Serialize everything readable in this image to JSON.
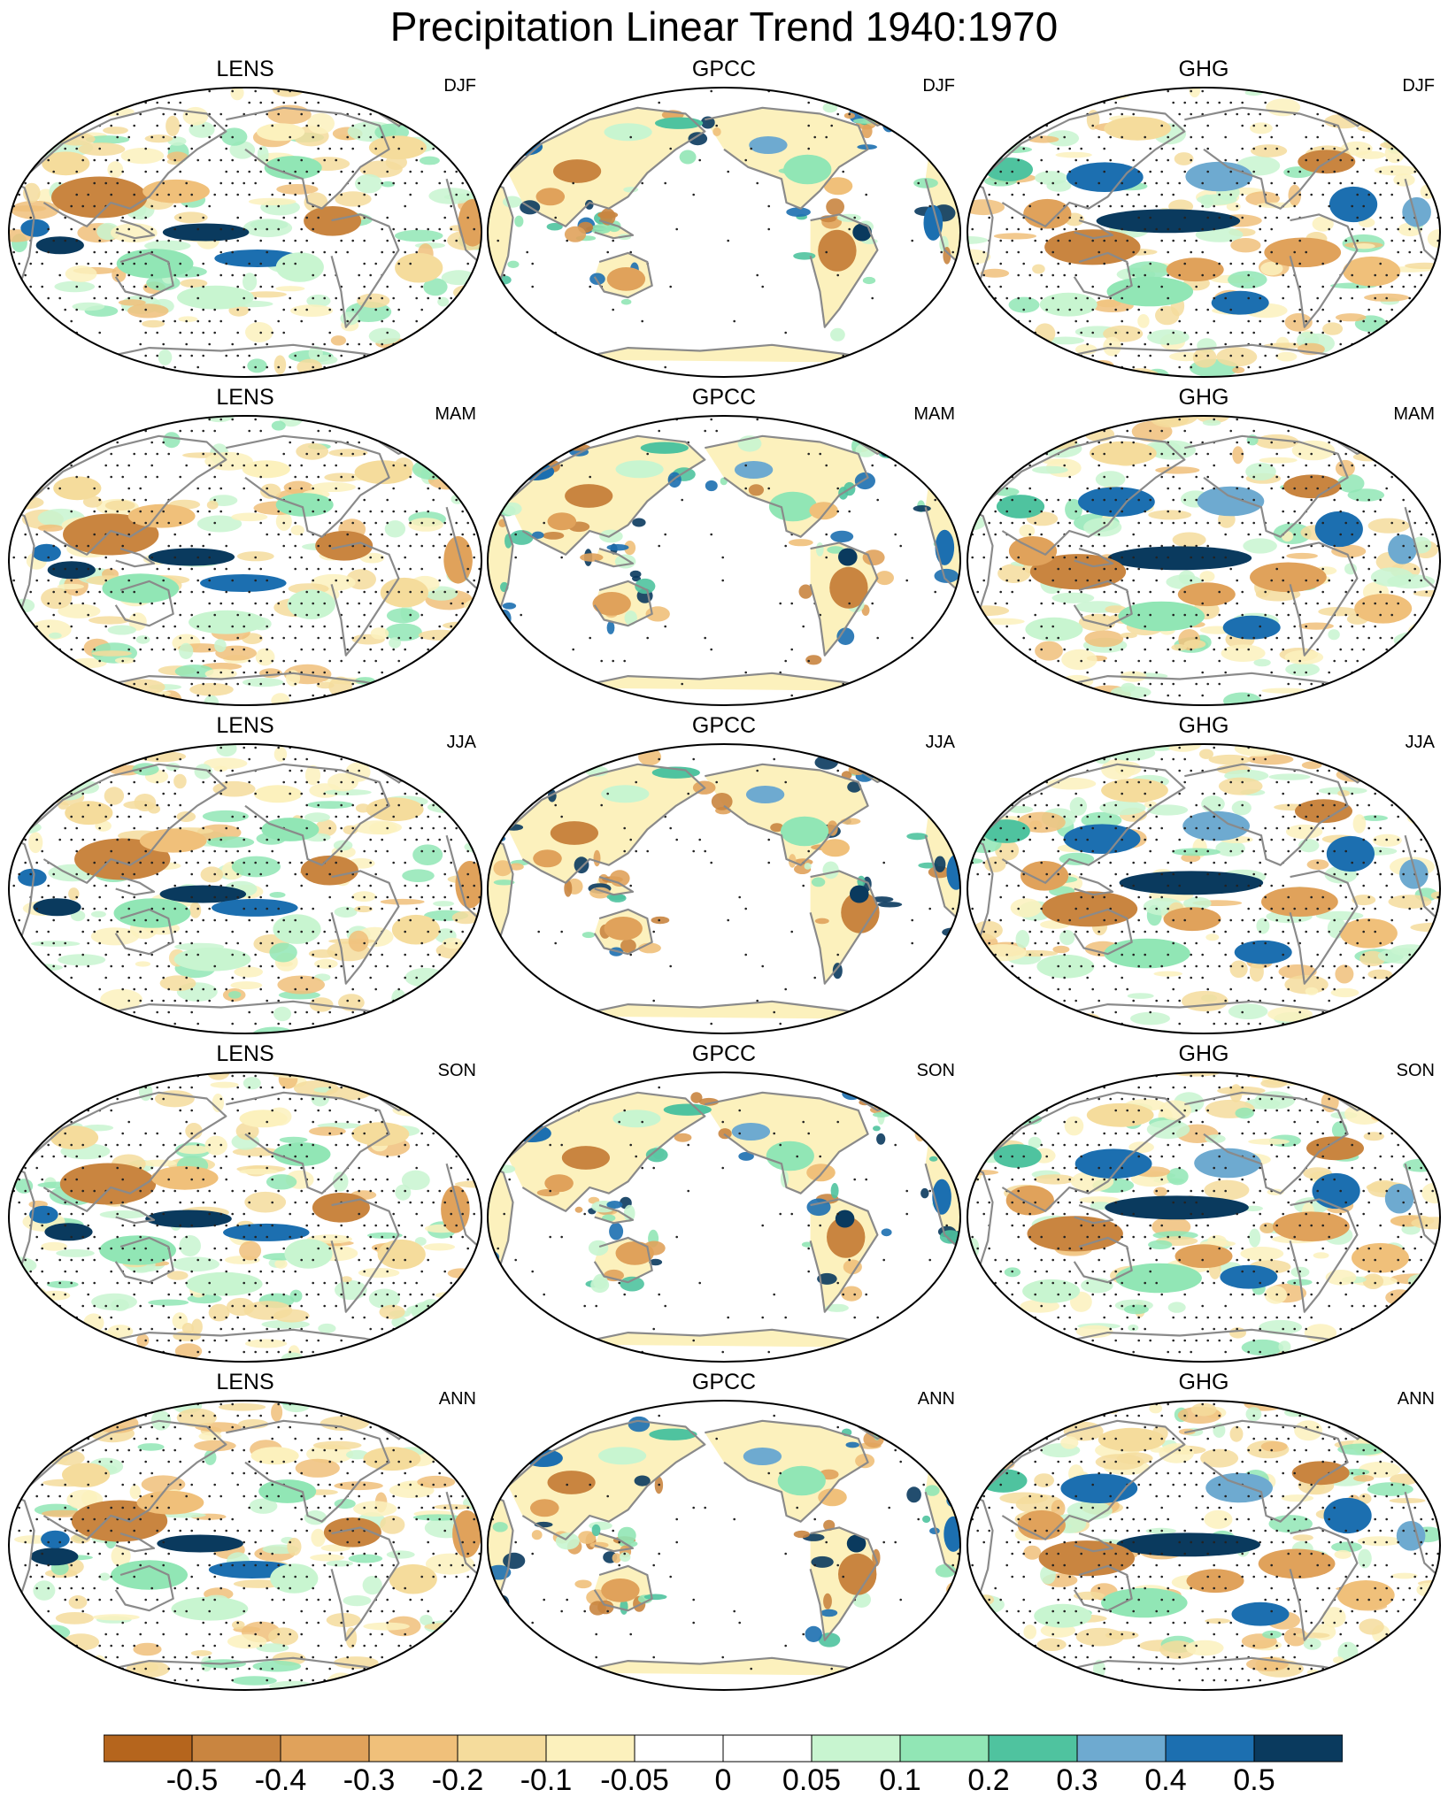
{
  "figure_title": "Precipitation Linear Trend 1940:1970",
  "columns": [
    "LENS",
    "GPCC",
    "GHG"
  ],
  "rows": [
    "DJF",
    "MAM",
    "JJA",
    "SON",
    "ANN"
  ],
  "colorbar": {
    "colors": [
      "#b5651d",
      "#c98540",
      "#e0a25b",
      "#f0c07a",
      "#f5dc9c",
      "#fcf1bd",
      "#ffffff",
      "#ffffff",
      "#c8f5d0",
      "#91e6b5",
      "#4fc39f",
      "#6eaad0",
      "#1c6fb0",
      "#0a3a5e"
    ],
    "labels": [
      "-0.5",
      "-0.4",
      "-0.3",
      "-0.2",
      "-0.1",
      "-0.05",
      "0",
      "0.05",
      "0.1",
      "0.2",
      "0.3",
      "0.4",
      "0.5"
    ]
  }
}
